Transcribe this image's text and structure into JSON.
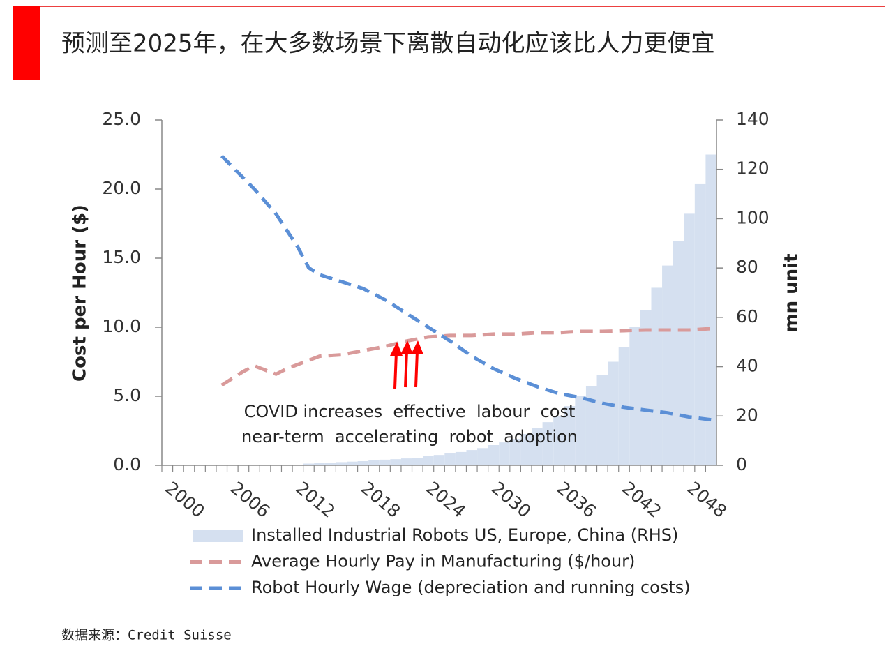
{
  "header": {
    "title": "预测至2025年，在大多数场景下离散自动化应该比人力更便宜"
  },
  "source": "数据来源：Credit Suisse",
  "chart_data": {
    "type": "combo",
    "y_label": "Cost per Hour ($)",
    "y2_label": "mn unit",
    "x": [
      2000,
      2001,
      2002,
      2003,
      2004,
      2005,
      2006,
      2007,
      2008,
      2009,
      2010,
      2011,
      2012,
      2013,
      2014,
      2015,
      2016,
      2017,
      2018,
      2019,
      2020,
      2021,
      2022,
      2023,
      2024,
      2025,
      2026,
      2027,
      2028,
      2029,
      2030,
      2031,
      2032,
      2033,
      2034,
      2035,
      2036,
      2037,
      2038,
      2039,
      2040,
      2041,
      2042,
      2043,
      2044,
      2045,
      2046,
      2047,
      2048,
      2049,
      2050
    ],
    "xlim": [
      1999.5,
      2050.5
    ],
    "xticks": [
      2000,
      2006,
      2012,
      2018,
      2024,
      2030,
      2036,
      2042,
      2048
    ],
    "ylim": [
      0,
      25
    ],
    "yticks": [
      {
        "value": 0,
        "label": "0.0"
      },
      {
        "value": 5,
        "label": "5.0"
      },
      {
        "value": 10,
        "label": "10.0"
      },
      {
        "value": 15,
        "label": "15.0"
      },
      {
        "value": 20,
        "label": "20.0"
      },
      {
        "value": 25,
        "label": "25.0"
      }
    ],
    "y2lim": [
      0,
      140
    ],
    "y2ticks": [
      0,
      20,
      40,
      60,
      80,
      100,
      120,
      140
    ],
    "series": [
      {
        "name": "Installed Industrial Robots US, Europe, China (RHS)",
        "type": "bar",
        "axis": "y2",
        "color": "#d5e0f0",
        "values": [
          null,
          null,
          null,
          null,
          null,
          null,
          null,
          null,
          null,
          null,
          null,
          null,
          null,
          0.7,
          0.9,
          1.1,
          1.3,
          1.5,
          1.7,
          2.0,
          2.3,
          2.5,
          2.8,
          3.1,
          3.7,
          4.2,
          4.8,
          5.4,
          6.2,
          7.0,
          8.2,
          9.3,
          10.7,
          12.7,
          15,
          17.5,
          20,
          24,
          28,
          32,
          36.5,
          42,
          48,
          56,
          63,
          72,
          81,
          91,
          102,
          114,
          126
        ]
      },
      {
        "name": "Average Hourly Pay in Manufacturing ($/hour)",
        "type": "line",
        "color": "#d99a9a",
        "values": [
          null,
          null,
          null,
          null,
          null,
          5.8,
          6.3,
          6.8,
          7.2,
          6.9,
          6.6,
          7.0,
          7.3,
          7.6,
          7.9,
          7.95,
          8.0,
          8.15,
          8.3,
          8.45,
          8.6,
          8.8,
          9.0,
          9.15,
          9.3,
          9.35,
          9.4,
          9.4,
          9.4,
          9.45,
          9.5,
          9.5,
          9.5,
          9.55,
          9.6,
          9.6,
          9.6,
          9.65,
          9.7,
          9.7,
          9.7,
          9.72,
          9.75,
          9.78,
          9.8,
          9.8,
          9.8,
          9.8,
          9.8,
          9.85,
          9.9
        ]
      },
      {
        "name": "Robot Hourly Wage (depreciation and running costs)",
        "type": "line",
        "color": "#5b8fd6",
        "values": [
          null,
          null,
          null,
          null,
          null,
          22.4,
          21.6,
          20.8,
          20.0,
          19.1,
          18.2,
          17.0,
          15.8,
          14.3,
          13.8,
          13.55,
          13.3,
          13.05,
          12.8,
          12.4,
          12.0,
          11.5,
          11.0,
          10.5,
          10.0,
          9.5,
          9.0,
          8.45,
          7.9,
          7.45,
          7.0,
          6.65,
          6.3,
          6.0,
          5.7,
          5.45,
          5.2,
          5.05,
          4.9,
          4.7,
          4.5,
          4.35,
          4.2,
          4.1,
          4.0,
          3.9,
          3.8,
          3.65,
          3.5,
          3.4,
          3.3
        ]
      }
    ],
    "annotations": [
      "COVID increases  effective  labour  cost",
      "near-term  accelerating  robot  adoption"
    ]
  }
}
